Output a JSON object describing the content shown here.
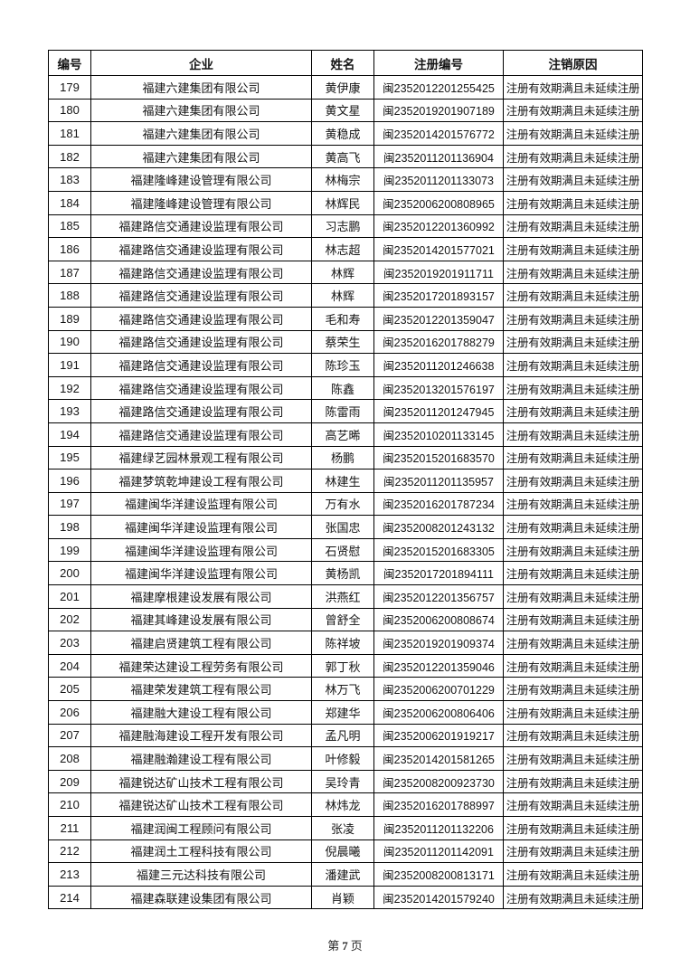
{
  "footer": {
    "prefix": "第",
    "page_number": "7",
    "suffix": "页"
  },
  "table": {
    "headers": [
      "编号",
      "企业",
      "姓名",
      "注册编号",
      "注销原因"
    ],
    "rows": [
      [
        "179",
        "福建六建集团有限公司",
        "黄伊康",
        "闽2352012201255425",
        "注册有效期满且未延续注册"
      ],
      [
        "180",
        "福建六建集团有限公司",
        "黄文星",
        "闽2352019201907189",
        "注册有效期满且未延续注册"
      ],
      [
        "181",
        "福建六建集团有限公司",
        "黄稳成",
        "闽2352014201576772",
        "注册有效期满且未延续注册"
      ],
      [
        "182",
        "福建六建集团有限公司",
        "黄高飞",
        "闽2352011201136904",
        "注册有效期满且未延续注册"
      ],
      [
        "183",
        "福建隆峰建设管理有限公司",
        "林梅宗",
        "闽2352011201133073",
        "注册有效期满且未延续注册"
      ],
      [
        "184",
        "福建隆峰建设管理有限公司",
        "林辉民",
        "闽2352006200808965",
        "注册有效期满且未延续注册"
      ],
      [
        "185",
        "福建路信交通建设监理有限公司",
        "习志鹏",
        "闽2352012201360992",
        "注册有效期满且未延续注册"
      ],
      [
        "186",
        "福建路信交通建设监理有限公司",
        "林志超",
        "闽2352014201577021",
        "注册有效期满且未延续注册"
      ],
      [
        "187",
        "福建路信交通建设监理有限公司",
        "林辉",
        "闽2352019201911711",
        "注册有效期满且未延续注册"
      ],
      [
        "188",
        "福建路信交通建设监理有限公司",
        "林辉",
        "闽2352017201893157",
        "注册有效期满且未延续注册"
      ],
      [
        "189",
        "福建路信交通建设监理有限公司",
        "毛和寿",
        "闽2352012201359047",
        "注册有效期满且未延续注册"
      ],
      [
        "190",
        "福建路信交通建设监理有限公司",
        "蔡荣生",
        "闽2352016201788279",
        "注册有效期满且未延续注册"
      ],
      [
        "191",
        "福建路信交通建设监理有限公司",
        "陈珍玉",
        "闽2352011201246638",
        "注册有效期满且未延续注册"
      ],
      [
        "192",
        "福建路信交通建设监理有限公司",
        "陈鑫",
        "闽2352013201576197",
        "注册有效期满且未延续注册"
      ],
      [
        "193",
        "福建路信交通建设监理有限公司",
        "陈雷雨",
        "闽2352011201247945",
        "注册有效期满且未延续注册"
      ],
      [
        "194",
        "福建路信交通建设监理有限公司",
        "高艺晞",
        "闽2352010201133145",
        "注册有效期满且未延续注册"
      ],
      [
        "195",
        "福建绿艺园林景观工程有限公司",
        "杨鹏",
        "闽2352015201683570",
        "注册有效期满且未延续注册"
      ],
      [
        "196",
        "福建梦筑乾坤建设工程有限公司",
        "林建生",
        "闽2352011201135957",
        "注册有效期满且未延续注册"
      ],
      [
        "197",
        "福建闽华洋建设监理有限公司",
        "万有水",
        "闽2352016201787234",
        "注册有效期满且未延续注册"
      ],
      [
        "198",
        "福建闽华洋建设监理有限公司",
        "张国忠",
        "闽2352008201243132",
        "注册有效期满且未延续注册"
      ],
      [
        "199",
        "福建闽华洋建设监理有限公司",
        "石贤慰",
        "闽2352015201683305",
        "注册有效期满且未延续注册"
      ],
      [
        "200",
        "福建闽华洋建设监理有限公司",
        "黄杨凯",
        "闽2352017201894111",
        "注册有效期满且未延续注册"
      ],
      [
        "201",
        "福建摩根建设发展有限公司",
        "洪燕红",
        "闽2352012201356757",
        "注册有效期满且未延续注册"
      ],
      [
        "202",
        "福建其峰建设发展有限公司",
        "曾舒全",
        "闽2352006200808674",
        "注册有效期满且未延续注册"
      ],
      [
        "203",
        "福建启贤建筑工程有限公司",
        "陈祥坡",
        "闽2352019201909374",
        "注册有效期满且未延续注册"
      ],
      [
        "204",
        "福建荣达建设工程劳务有限公司",
        "郭丁秋",
        "闽2352012201359046",
        "注册有效期满且未延续注册"
      ],
      [
        "205",
        "福建荣发建筑工程有限公司",
        "林万飞",
        "闽2352006200701229",
        "注册有效期满且未延续注册"
      ],
      [
        "206",
        "福建融大建设工程有限公司",
        "郑建华",
        "闽2352006200806406",
        "注册有效期满且未延续注册"
      ],
      [
        "207",
        "福建融海建设工程开发有限公司",
        "孟凡明",
        "闽2352006201919217",
        "注册有效期满且未延续注册"
      ],
      [
        "208",
        "福建融瀚建设工程有限公司",
        "叶修毅",
        "闽2352014201581265",
        "注册有效期满且未延续注册"
      ],
      [
        "209",
        "福建锐达矿山技术工程有限公司",
        "吴玲青",
        "闽2352008200923730",
        "注册有效期满且未延续注册"
      ],
      [
        "210",
        "福建锐达矿山技术工程有限公司",
        "林炜龙",
        "闽2352016201788997",
        "注册有效期满且未延续注册"
      ],
      [
        "211",
        "福建润闽工程顾问有限公司",
        "张凌",
        "闽2352011201132206",
        "注册有效期满且未延续注册"
      ],
      [
        "212",
        "福建润土工程科技有限公司",
        "倪晨曦",
        "闽2352011201142091",
        "注册有效期满且未延续注册"
      ],
      [
        "213",
        "福建三元达科技有限公司",
        "潘建武",
        "闽2352008200813171",
        "注册有效期满且未延续注册"
      ],
      [
        "214",
        "福建森联建设集团有限公司",
        "肖颖",
        "闽2352014201579240",
        "注册有效期满且未延续注册"
      ]
    ]
  }
}
